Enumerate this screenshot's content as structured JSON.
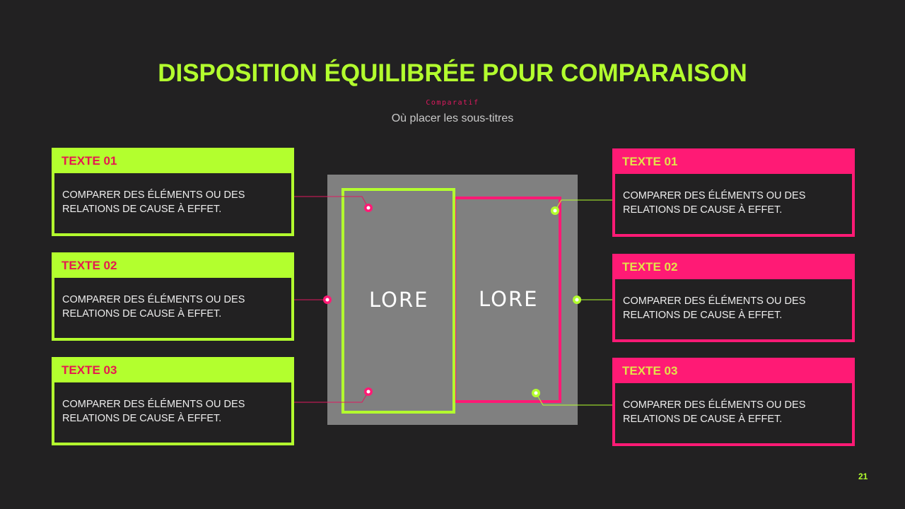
{
  "title": "DISPOSITION ÉQUILIBRÉE POUR COMPARAISON",
  "kicker": "Comparatif",
  "subtitle": "Où placer les sous-titres",
  "colors": {
    "background": "#222122",
    "green": "#b3ff2e",
    "pink": "#ff1a75",
    "panel": "#808080"
  },
  "left_cards": [
    {
      "label": "TEXTE 01",
      "text": "COMPARER DES ÉLÉMENTS OU DES RELATIONS DE CAUSE À EFFET."
    },
    {
      "label": "TEXTE 02",
      "text": "COMPARER DES ÉLÉMENTS OU DES RELATIONS DE CAUSE À EFFET."
    },
    {
      "label": "TEXTE 03",
      "text": "COMPARER DES ÉLÉMENTS OU DES RELATIONS DE CAUSE À EFFET."
    }
  ],
  "right_cards": [
    {
      "label": "TEXTE 01",
      "text": "COMPARER DES ÉLÉMENTS OU DES RELATIONS DE CAUSE À EFFET."
    },
    {
      "label": "TEXTE 02",
      "text": "COMPARER DES ÉLÉMENTS OU DES RELATIONS DE CAUSE À EFFET."
    },
    {
      "label": "TEXTE 03",
      "text": "COMPARER DES ÉLÉMENTS OU DES RELATIONS DE CAUSE À EFFET."
    }
  ],
  "center": {
    "left_label": "LORE",
    "right_label": "LORE"
  },
  "page_number": "21"
}
